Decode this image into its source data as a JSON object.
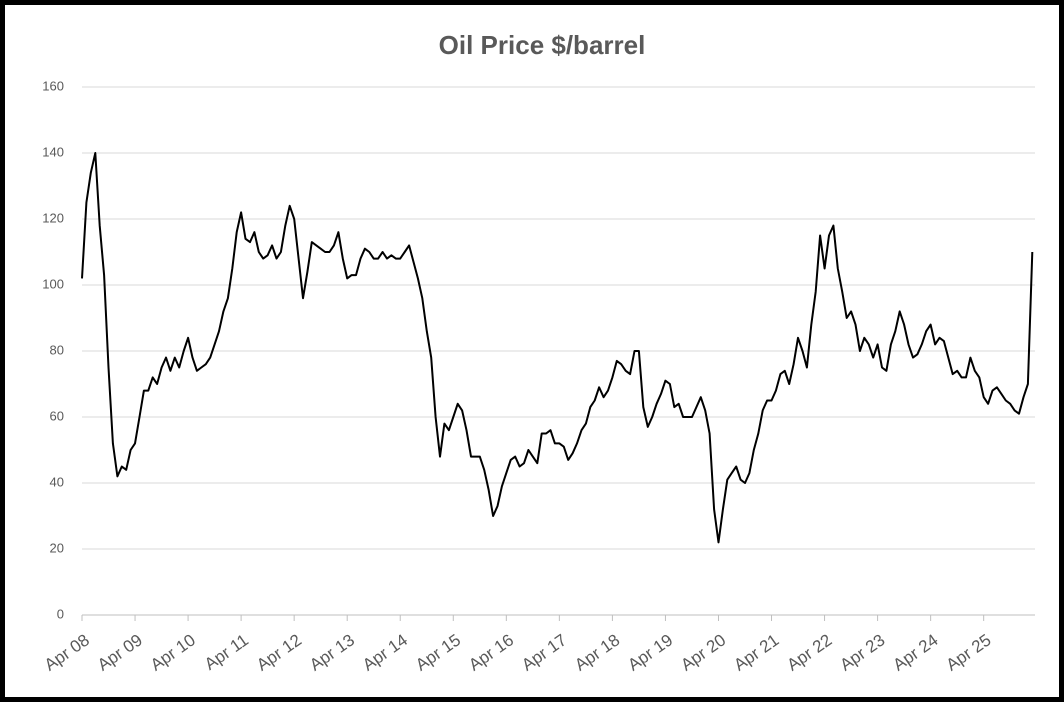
{
  "chart_data": {
    "type": "line",
    "title": "Oil Price $/barrel",
    "categories": [
      "Apr 08",
      null,
      null,
      null,
      null,
      null,
      null,
      null,
      null,
      null,
      null,
      null,
      "Apr 09",
      null,
      null,
      null,
      null,
      null,
      null,
      null,
      null,
      null,
      null,
      null,
      "Apr 10",
      null,
      null,
      null,
      null,
      null,
      null,
      null,
      null,
      null,
      null,
      null,
      "Apr 11",
      null,
      null,
      null,
      null,
      null,
      null,
      null,
      null,
      null,
      null,
      null,
      "Apr 12",
      null,
      null,
      null,
      null,
      null,
      null,
      null,
      null,
      null,
      null,
      null,
      "Apr 13",
      null,
      null,
      null,
      null,
      null,
      null,
      null,
      null,
      null,
      null,
      null,
      "Apr 14",
      null,
      null,
      null,
      null,
      null,
      null,
      null,
      null,
      null,
      null,
      null,
      "Apr 15",
      null,
      null,
      null,
      null,
      null,
      null,
      null,
      null,
      null,
      null,
      null,
      "Apr 16",
      null,
      null,
      null,
      null,
      null,
      null,
      null,
      null,
      null,
      null,
      null,
      "Apr 17",
      null,
      null,
      null,
      null,
      null,
      null,
      null,
      null,
      null,
      null,
      null,
      "Apr 18",
      null,
      null,
      null,
      null,
      null,
      null,
      null,
      null,
      null,
      null,
      null,
      "Apr 19",
      null,
      null,
      null,
      null,
      null,
      null,
      null,
      null,
      null,
      null,
      null,
      "Apr 20",
      null,
      null,
      null,
      null,
      null,
      null,
      null,
      null,
      null,
      null,
      null,
      "Apr 21",
      null,
      null,
      null,
      null,
      null,
      null,
      null,
      null,
      null,
      null,
      null,
      "Apr 22",
      null,
      null,
      null,
      null,
      null,
      null,
      null,
      null,
      null,
      null,
      null,
      "Apr 23",
      null,
      null,
      null,
      null,
      null,
      null,
      null,
      null,
      null,
      null,
      null,
      "Apr 24",
      null,
      null,
      null,
      null,
      null,
      null,
      null,
      null,
      null,
      null,
      null,
      "Apr 25",
      null,
      null,
      null,
      null,
      null,
      null,
      null,
      null,
      null,
      null,
      null
    ],
    "values": [
      102,
      125,
      134,
      140,
      118,
      103,
      75,
      52,
      42,
      45,
      44,
      50,
      52,
      60,
      68,
      68,
      72,
      70,
      75,
      78,
      74,
      78,
      75,
      80,
      84,
      78,
      74,
      75,
      76,
      78,
      82,
      86,
      92,
      96,
      105,
      116,
      122,
      114,
      113,
      116,
      110,
      108,
      109,
      112,
      108,
      110,
      118,
      124,
      120,
      108,
      96,
      104,
      113,
      112,
      111,
      110,
      110,
      112,
      116,
      108,
      102,
      103,
      103,
      108,
      111,
      110,
      108,
      108,
      110,
      108,
      109,
      108,
      108,
      110,
      112,
      107,
      102,
      96,
      86,
      78,
      60,
      48,
      58,
      56,
      60,
      64,
      62,
      56,
      48,
      48,
      48,
      44,
      38,
      30,
      33,
      39,
      43,
      47,
      48,
      45,
      46,
      50,
      48,
      46,
      55,
      55,
      56,
      52,
      52,
      51,
      47,
      49,
      52,
      56,
      58,
      63,
      65,
      69,
      66,
      68,
      72,
      77,
      76,
      74,
      73,
      80,
      80,
      63,
      57,
      60,
      64,
      67,
      71,
      70,
      63,
      64,
      60,
      60,
      60,
      63,
      66,
      62,
      55,
      32,
      22,
      32,
      41,
      43,
      45,
      41,
      40,
      43,
      50,
      55,
      62,
      65,
      65,
      68,
      73,
      74,
      70,
      76,
      84,
      80,
      75,
      88,
      98,
      115,
      105,
      115,
      118,
      105,
      98,
      90,
      92,
      88,
      80,
      84,
      82,
      78,
      82,
      75,
      74,
      82,
      86,
      92,
      88,
      82,
      78,
      79,
      82,
      86,
      88,
      82,
      84,
      83,
      78,
      73,
      74,
      72,
      72,
      78,
      74,
      72,
      66,
      64,
      68,
      69,
      67,
      65,
      64,
      62,
      61,
      66,
      70,
      110
    ],
    "color": "#000000",
    "ylim": [
      0,
      160
    ],
    "yticks": [
      0,
      20,
      40,
      60,
      80,
      100,
      120,
      140,
      160
    ],
    "grid": true
  }
}
